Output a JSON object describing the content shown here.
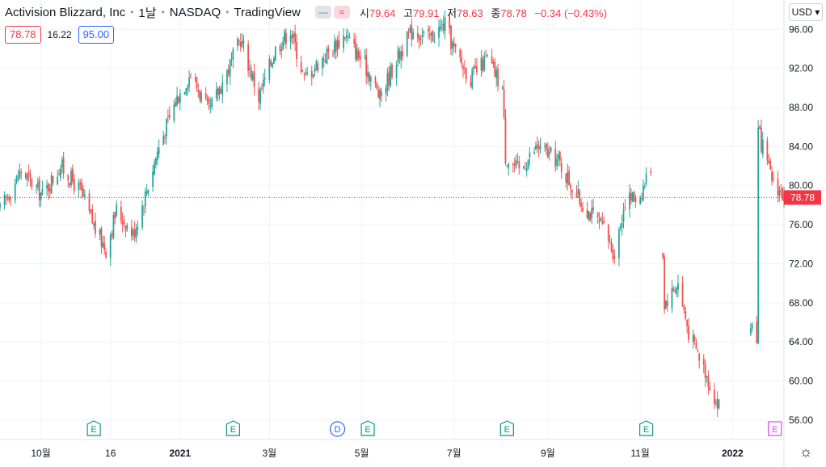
{
  "header": {
    "symbol": "Activision Blizzard, Inc",
    "interval": "1날",
    "exchange": "NASDAQ",
    "source": "TradingView",
    "flag_glyph": "—",
    "wave_glyph": "≈",
    "ohlc": {
      "open_label": "시",
      "open": "79.64",
      "high_label": "고",
      "high": "79.91",
      "low_label": "저",
      "low": "78.63",
      "close_label": "종",
      "close": "78.78",
      "change": "−0.34 (−0.43%)"
    }
  },
  "subheader": {
    "bid": "78.78",
    "spread": "16.22",
    "ask": "95.00"
  },
  "currency_button": "USD ▾",
  "settings_glyph": "☼",
  "colors": {
    "up": "#26a69a",
    "down": "#ef5350",
    "grid": "#f0f3fa",
    "last_price": "#f23645"
  },
  "chart_data": {
    "type": "candlestick",
    "y_range": [
      54.0,
      99.0
    ],
    "y_ticks": [
      56,
      60,
      64,
      68,
      72,
      76,
      80,
      84,
      88,
      92,
      96
    ],
    "y_tick_labels": [
      "56.00",
      "60.00",
      "64.00",
      "68.00",
      "72.00",
      "76.00",
      "80.00",
      "84.00",
      "88.00",
      "92.00",
      "96.00"
    ],
    "x_ticks": [
      "10월",
      "16",
      "2021",
      "3월",
      "5월",
      "7월",
      "9월",
      "11월",
      "2022"
    ],
    "x_tick_dates": [
      "2020-10-01",
      "2020-11-16",
      "2021-01-01",
      "2021-03-01",
      "2021-05-01",
      "2021-07-01",
      "2021-09-01",
      "2021-11-01",
      "2022-01-01"
    ],
    "x_range": [
      "2020-09-04",
      "2022-02-04"
    ],
    "last_price": 78.78,
    "last_price_label": "78.78",
    "events": [
      {
        "letter": "E",
        "date": "2020-11-05",
        "kind": "earnings"
      },
      {
        "letter": "E",
        "date": "2021-02-05",
        "kind": "earnings"
      },
      {
        "letter": "D",
        "date": "2021-04-15",
        "kind": "dividend"
      },
      {
        "letter": "E",
        "date": "2021-05-05",
        "kind": "earnings"
      },
      {
        "letter": "E",
        "date": "2021-08-05",
        "kind": "earnings"
      },
      {
        "letter": "E",
        "date": "2021-11-05",
        "kind": "earnings"
      },
      {
        "letter": "E",
        "date": "2022-01-29",
        "kind": "earnings-upcoming"
      }
    ],
    "close_path": [
      [
        "2020-09-04",
        77.5
      ],
      [
        "2020-09-18",
        81.5
      ],
      [
        "2020-10-02",
        79.0
      ],
      [
        "2020-10-14",
        82.0
      ],
      [
        "2020-10-27",
        79.5
      ],
      [
        "2020-11-06",
        75.5
      ],
      [
        "2020-11-13",
        73.5
      ],
      [
        "2020-11-20",
        77.5
      ],
      [
        "2020-12-01",
        75.0
      ],
      [
        "2020-12-08",
        78.5
      ],
      [
        "2020-12-18",
        84.0
      ],
      [
        "2020-12-30",
        89.0
      ],
      [
        "2021-01-08",
        91.5
      ],
      [
        "2021-01-20",
        87.5
      ],
      [
        "2021-02-02",
        92.0
      ],
      [
        "2021-02-10",
        95.0
      ],
      [
        "2021-02-22",
        89.0
      ],
      [
        "2021-03-05",
        94.0
      ],
      [
        "2021-03-15",
        96.0
      ],
      [
        "2021-03-24",
        91.0
      ],
      [
        "2021-04-05",
        93.0
      ],
      [
        "2021-04-20",
        95.5
      ],
      [
        "2021-05-06",
        91.5
      ],
      [
        "2021-05-13",
        89.0
      ],
      [
        "2021-05-24",
        93.0
      ],
      [
        "2021-06-04",
        96.0
      ],
      [
        "2021-06-14",
        95.0
      ],
      [
        "2021-06-25",
        96.5
      ],
      [
        "2021-07-02",
        93.5
      ],
      [
        "2021-07-12",
        91.0
      ],
      [
        "2021-07-23",
        93.0
      ],
      [
        "2021-08-02",
        90.0
      ],
      [
        "2021-08-04",
        83.0
      ],
      [
        "2021-08-13",
        81.5
      ],
      [
        "2021-08-25",
        84.0
      ],
      [
        "2021-09-08",
        82.5
      ],
      [
        "2021-09-22",
        78.5
      ],
      [
        "2021-10-08",
        75.5
      ],
      [
        "2021-10-15",
        73.0
      ],
      [
        "2021-10-22",
        78.5
      ],
      [
        "2021-11-01",
        79.0
      ],
      [
        "2021-11-08",
        82.0
      ],
      [
        "2021-11-15",
        78.0
      ],
      [
        "2021-11-17",
        68.0
      ],
      [
        "2021-11-26",
        70.0
      ],
      [
        "2021-12-03",
        65.0
      ],
      [
        "2021-12-14",
        61.0
      ],
      [
        "2021-12-22",
        57.5
      ],
      [
        "2022-01-03",
        59.0
      ],
      [
        "2022-01-10",
        64.0
      ],
      [
        "2022-01-14",
        66.0
      ],
      [
        "2022-01-17",
        64.5
      ],
      [
        "2022-01-18",
        85.5
      ],
      [
        "2022-01-26",
        81.0
      ],
      [
        "2022-02-04",
        78.78
      ]
    ],
    "gaps": [
      [
        "2021-11-09",
        "2021-11-15"
      ],
      [
        "2021-12-24",
        "2022-01-12"
      ]
    ]
  }
}
